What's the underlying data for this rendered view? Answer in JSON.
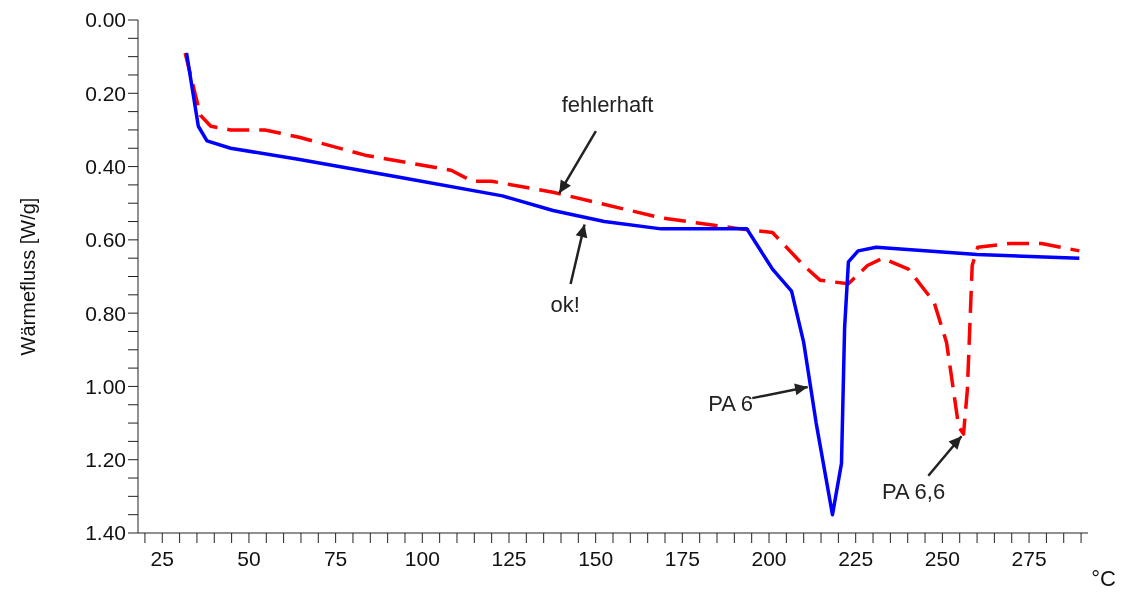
{
  "chart_data": {
    "type": "line",
    "xlabel": "°C",
    "ylabel": "Wärmefluss [W/g]",
    "xlim": [
      18,
      292
    ],
    "ylim": [
      1.4,
      0
    ],
    "xticks": [
      {
        "value": 20,
        "label": null
      },
      25,
      {
        "value": 30,
        "label": null
      },
      {
        "value": 35,
        "label": null
      },
      {
        "value": 40,
        "label": null
      },
      {
        "value": 45,
        "label": null
      },
      50,
      {
        "value": 55,
        "label": null
      },
      {
        "value": 60,
        "label": null
      },
      {
        "value": 65,
        "label": null
      },
      {
        "value": 70,
        "label": null
      },
      75,
      {
        "value": 80,
        "label": null
      },
      {
        "value": 85,
        "label": null
      },
      {
        "value": 90,
        "label": null
      },
      {
        "value": 95,
        "label": null
      },
      100,
      {
        "value": 105,
        "label": null
      },
      {
        "value": 110,
        "label": null
      },
      {
        "value": 115,
        "label": null
      },
      {
        "value": 120,
        "label": null
      },
      125,
      {
        "value": 130,
        "label": null
      },
      {
        "value": 135,
        "label": null
      },
      {
        "value": 140,
        "label": null
      },
      {
        "value": 145,
        "label": null
      },
      150,
      {
        "value": 155,
        "label": null
      },
      {
        "value": 160,
        "label": null
      },
      {
        "value": 165,
        "label": null
      },
      {
        "value": 170,
        "label": null
      },
      175,
      {
        "value": 180,
        "label": null
      },
      {
        "value": 185,
        "label": null
      },
      {
        "value": 190,
        "label": null
      },
      {
        "value": 195,
        "label": null
      },
      200,
      {
        "value": 205,
        "label": null
      },
      {
        "value": 210,
        "label": null
      },
      {
        "value": 215,
        "label": null
      },
      {
        "value": 220,
        "label": null
      },
      225,
      {
        "value": 230,
        "label": null
      },
      {
        "value": 235,
        "label": null
      },
      {
        "value": 240,
        "label": null
      },
      {
        "value": 245,
        "label": null
      },
      250,
      {
        "value": 255,
        "label": null
      },
      {
        "value": 260,
        "label": null
      },
      {
        "value": 265,
        "label": null
      },
      {
        "value": 270,
        "label": null
      },
      275,
      {
        "value": 280,
        "label": null
      },
      {
        "value": 285,
        "label": null
      },
      {
        "value": 290,
        "label": null
      }
    ],
    "yticks": [
      {
        "value": 0,
        "label": "0.00"
      },
      {
        "value": 0.05,
        "label": null
      },
      {
        "value": 0.1,
        "label": null
      },
      {
        "value": 0.15,
        "label": null
      },
      {
        "value": 0.2,
        "label": "0.20"
      },
      {
        "value": 0.25,
        "label": null
      },
      {
        "value": 0.3,
        "label": null
      },
      {
        "value": 0.35,
        "label": null
      },
      {
        "value": 0.4,
        "label": "0.40"
      },
      {
        "value": 0.45,
        "label": null
      },
      {
        "value": 0.5,
        "label": null
      },
      {
        "value": 0.55,
        "label": null
      },
      {
        "value": 0.6,
        "label": "0.60"
      },
      {
        "value": 0.65,
        "label": null
      },
      {
        "value": 0.7,
        "label": null
      },
      {
        "value": 0.75,
        "label": null
      },
      {
        "value": 0.8,
        "label": "0.80"
      },
      {
        "value": 0.85,
        "label": null
      },
      {
        "value": 0.9,
        "label": null
      },
      {
        "value": 0.95,
        "label": null
      },
      {
        "value": 1.0,
        "label": "1.00"
      },
      {
        "value": 1.05,
        "label": null
      },
      {
        "value": 1.1,
        "label": null
      },
      {
        "value": 1.15,
        "label": null
      },
      {
        "value": 1.2,
        "label": "1.20"
      },
      {
        "value": 1.25,
        "label": null
      },
      {
        "value": 1.3,
        "label": null
      },
      {
        "value": 1.35,
        "label": null
      },
      {
        "value": 1.4,
        "label": "1.40"
      }
    ],
    "marker": "none",
    "series": [
      {
        "color": "#ff0000",
        "line_style": "dashed",
        "x": [
          31.6,
          36,
          39,
          44.7,
          54.6,
          64.5,
          84,
          108.3,
          114.4,
          120,
          137.7,
          168.9,
          191.7,
          201,
          210,
          214.7,
          222.9,
          228.4,
          232.8,
          240.2,
          247.6,
          251.2,
          254.7,
          256.1,
          257.2,
          258.6,
          260.2,
          269.5,
          278.6,
          289.5
        ],
        "values": [
          0.09,
          0.26,
          0.29,
          0.3,
          0.3,
          0.32,
          0.37,
          0.41,
          0.44,
          0.44,
          0.47,
          0.54,
          0.57,
          0.58,
          0.67,
          0.71,
          0.72,
          0.67,
          0.65,
          0.68,
          0.77,
          0.88,
          1.11,
          1.13,
          1.01,
          0.67,
          0.62,
          0.61,
          0.61,
          0.63
        ]
      },
      {
        "color": "#0000ff",
        "line_style": "solid",
        "x": [
          32,
          35.4,
          37.9,
          44.7,
          64.2,
          93.8,
          123.1,
          137.7,
          152.5,
          168.9,
          193.6,
          201,
          206.5,
          210,
          213.6,
          218.3,
          220.9,
          221.8,
          222.9,
          225.7,
          230.9,
          260,
          289.5
        ],
        "values": [
          0.09,
          0.29,
          0.33,
          0.35,
          0.38,
          0.43,
          0.48,
          0.52,
          0.55,
          0.57,
          0.57,
          0.68,
          0.74,
          0.88,
          1.1,
          1.35,
          1.21,
          0.84,
          0.66,
          0.63,
          0.62,
          0.64,
          0.65
        ]
      }
    ],
    "annotations": [
      {
        "text": "fehlerhaft",
        "x": 139,
        "y": 0.48
      },
      {
        "text": "ok!",
        "x": 147,
        "y": 0.55
      },
      {
        "text": "PA 6",
        "x": 212,
        "y": 1.0
      },
      {
        "text": "PA 6,6",
        "x": 256.1,
        "y": 1.13
      }
    ]
  }
}
